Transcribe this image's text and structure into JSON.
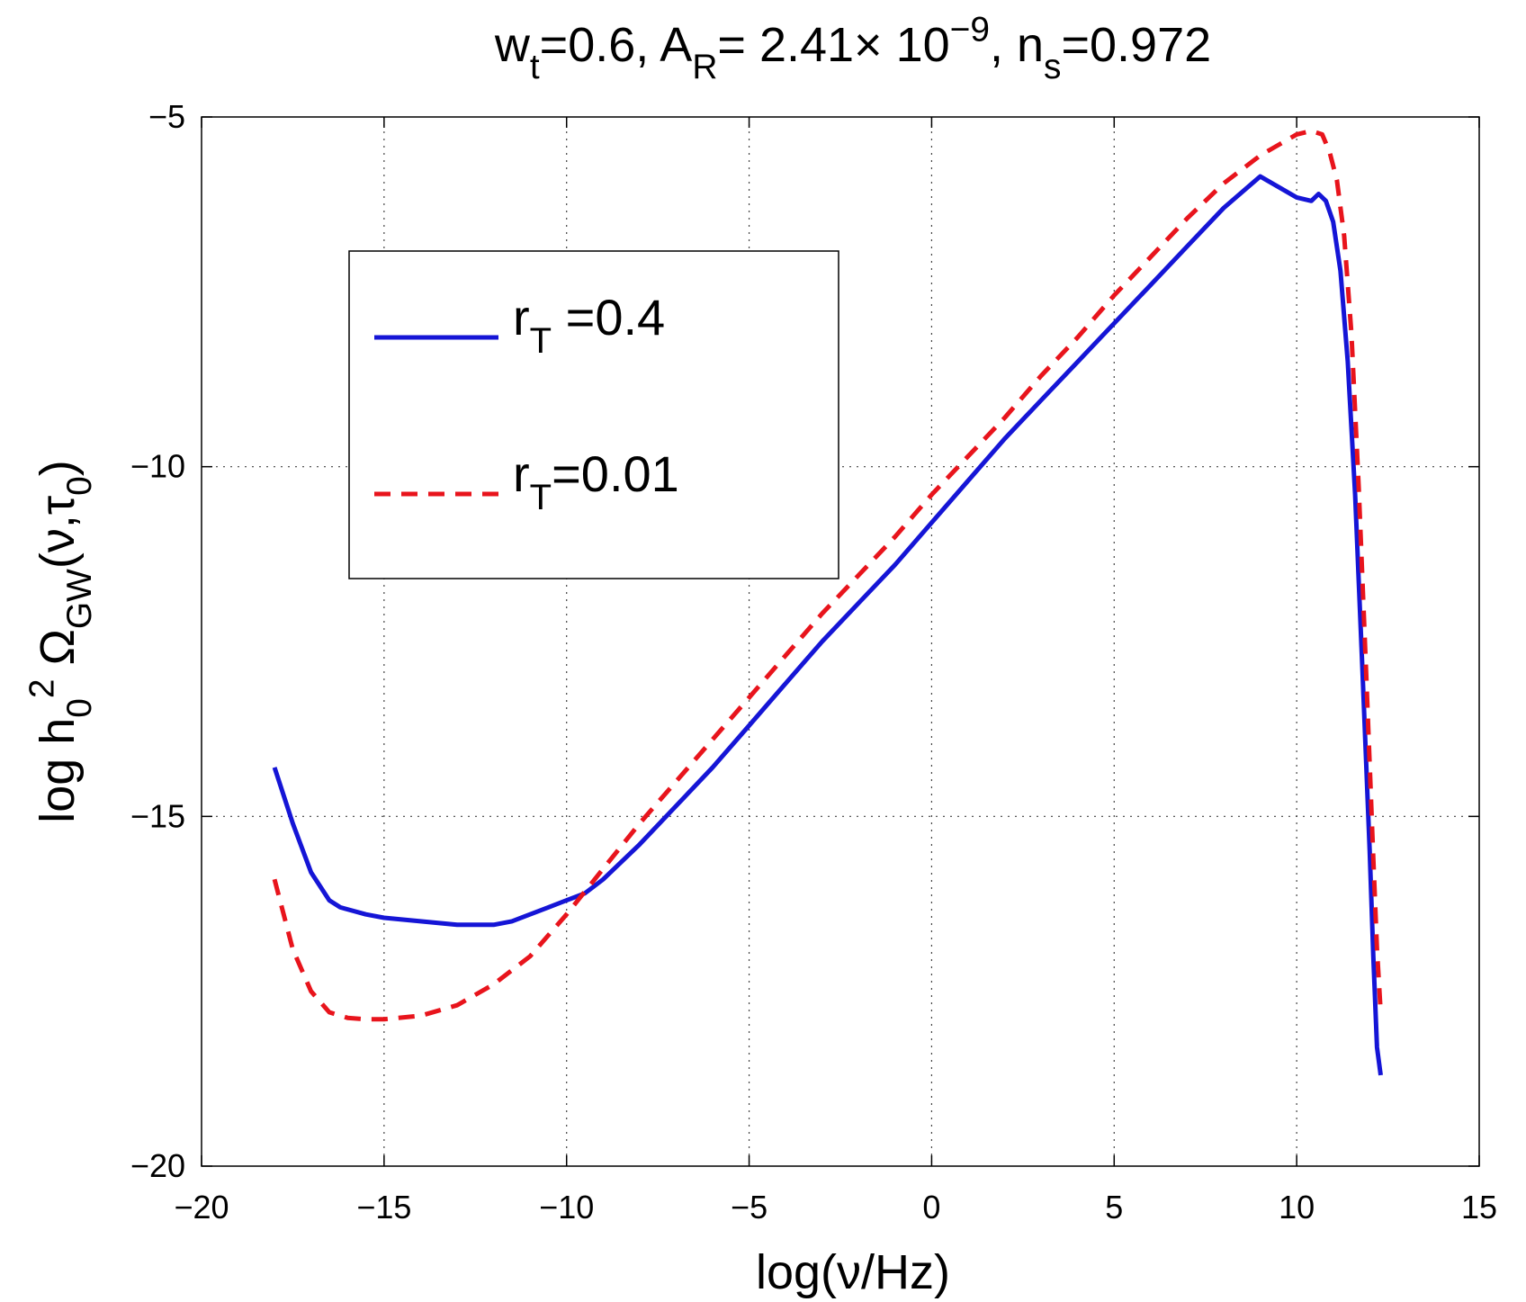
{
  "chart_data": {
    "type": "line",
    "title": {
      "parts": [
        {
          "text": "w",
          "style": "normal"
        },
        {
          "text": "t",
          "style": "sub"
        },
        {
          "text": "=0.6, A",
          "style": "normal"
        },
        {
          "text": "R",
          "style": "sub"
        },
        {
          "text": "= 2.41× 10",
          "style": "normal"
        },
        {
          "text": "−9",
          "style": "sup"
        },
        {
          "text": ", n",
          "style": "normal"
        },
        {
          "text": "s",
          "style": "sub"
        },
        {
          "text": "=0.972",
          "style": "normal"
        }
      ]
    },
    "xlabel": "log(ν/Hz)",
    "ylabel": {
      "parts": [
        {
          "text": "log h",
          "style": "normal"
        },
        {
          "text": "0",
          "style": "sub"
        },
        {
          "text": "2",
          "style": "sup"
        },
        {
          "text": " Ω",
          "style": "normal"
        },
        {
          "text": "GW",
          "style": "sub"
        },
        {
          "text": "(ν,τ",
          "style": "normal"
        },
        {
          "text": "0",
          "style": "sub"
        },
        {
          "text": ")",
          "style": "normal"
        }
      ]
    },
    "xlim": [
      -20,
      15
    ],
    "ylim": [
      -20,
      -5
    ],
    "xticks": [
      -20,
      -15,
      -10,
      -5,
      0,
      5,
      10,
      15
    ],
    "xtick_labels": [
      "−20",
      "−15",
      "−10",
      "−5",
      "0",
      "5",
      "10",
      "15"
    ],
    "yticks": [
      -20,
      -15,
      -10,
      -5
    ],
    "ytick_labels": [
      "−20",
      "−15",
      "−10",
      "−5"
    ],
    "grid": true,
    "legend_position": "upper-left",
    "series": [
      {
        "label_main": "r",
        "label_sub": "T",
        "label_rest": " =0.4",
        "color": "#1515d6",
        "dash": "solid",
        "x": [
          -18,
          -17.5,
          -17,
          -16.5,
          -16.2,
          -15.5,
          -15,
          -14,
          -13,
          -12,
          -11.5,
          -11,
          -10.5,
          -10,
          -9.5,
          -9,
          -8,
          -7,
          -6,
          -5,
          -4,
          -3,
          -2,
          -1,
          0,
          1,
          2,
          3,
          4,
          5,
          6,
          7,
          8,
          9,
          10,
          10.4,
          10.6,
          10.8,
          11.0,
          11.2,
          11.4,
          11.6,
          11.8,
          12.0,
          12.1,
          12.2,
          12.3
        ],
        "y": [
          -14.3,
          -15.1,
          -15.8,
          -16.2,
          -16.3,
          -16.4,
          -16.45,
          -16.5,
          -16.55,
          -16.55,
          -16.5,
          -16.4,
          -16.3,
          -16.2,
          -16.1,
          -15.9,
          -15.4,
          -14.85,
          -14.3,
          -13.7,
          -13.1,
          -12.5,
          -11.95,
          -11.4,
          -10.8,
          -10.2,
          -9.6,
          -9.05,
          -8.5,
          -7.95,
          -7.4,
          -6.85,
          -6.3,
          -5.85,
          -6.15,
          -6.2,
          -6.1,
          -6.2,
          -6.5,
          -7.2,
          -8.5,
          -10.4,
          -12.9,
          -15.5,
          -17.0,
          -18.3,
          -18.7
        ]
      },
      {
        "label_main": "r",
        "label_sub": "T",
        "label_rest": "=0.01",
        "color": "#e8141c",
        "dash": "dashed",
        "x": [
          -18,
          -17.5,
          -17,
          -16.5,
          -16,
          -15.5,
          -15,
          -14,
          -13,
          -12,
          -11,
          -10,
          -9,
          -8,
          -7,
          -6,
          -5,
          -4,
          -3,
          -2,
          -1,
          0,
          1,
          2,
          3,
          4,
          5,
          6,
          7,
          8,
          9,
          10,
          10.4,
          10.7,
          10.9,
          11.1,
          11.3,
          11.5,
          11.7,
          11.9,
          12.1,
          12.2,
          12.3
        ],
        "y": [
          -15.9,
          -16.9,
          -17.5,
          -17.8,
          -17.88,
          -17.9,
          -17.9,
          -17.85,
          -17.7,
          -17.4,
          -17.0,
          -16.4,
          -15.75,
          -15.1,
          -14.5,
          -13.9,
          -13.3,
          -12.7,
          -12.1,
          -11.55,
          -11.0,
          -10.4,
          -9.85,
          -9.3,
          -8.7,
          -8.15,
          -7.55,
          -7.0,
          -6.45,
          -5.95,
          -5.55,
          -5.25,
          -5.2,
          -5.25,
          -5.5,
          -5.9,
          -6.7,
          -8.1,
          -10.3,
          -12.9,
          -15.6,
          -16.9,
          -17.8
        ]
      }
    ]
  }
}
